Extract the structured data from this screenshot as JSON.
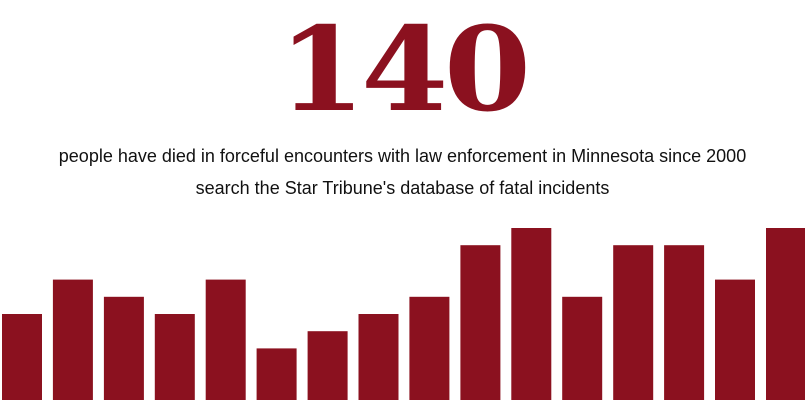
{
  "headline": {
    "count": "140",
    "description": "people have died in forceful encounters with law enforcement in Minnesota since 2000",
    "search_link": "search the Star Tribune's database of fatal incidents"
  },
  "colors": {
    "accent": "#8b111f",
    "text": "#111111"
  },
  "chart_data": {
    "type": "bar",
    "values": [
      5,
      7,
      6,
      5,
      7,
      3,
      4,
      5,
      6,
      9,
      10,
      6,
      9,
      9,
      7,
      10
    ],
    "ylim": [
      0,
      10
    ],
    "grid": false,
    "legend": "none"
  }
}
